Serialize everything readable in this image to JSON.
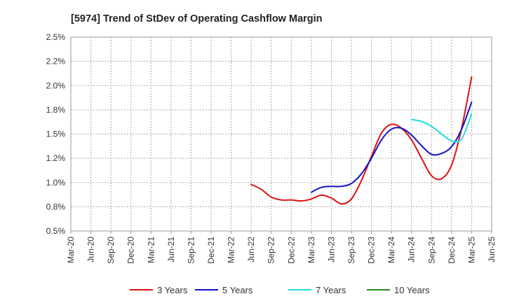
{
  "chart_data": {
    "type": "line",
    "title": "[5974]  Trend of StDev of Operating Cashflow Margin",
    "xlabel": "",
    "ylabel": "",
    "x_ticks": [
      "Mar-20",
      "Jun-20",
      "Sep-20",
      "Dec-20",
      "Mar-21",
      "Jun-21",
      "Sep-21",
      "Dec-21",
      "Mar-22",
      "Jun-22",
      "Sep-22",
      "Dec-22",
      "Mar-23",
      "Jun-23",
      "Sep-23",
      "Dec-23",
      "Mar-24",
      "Jun-24",
      "Sep-24",
      "Dec-24",
      "Mar-25",
      "Jun-25"
    ],
    "y_ticks": [
      "0.5%",
      "0.8%",
      "1.0%",
      "1.2%",
      "1.5%",
      "1.8%",
      "2.0%",
      "2.2%",
      "2.5%"
    ],
    "ylim": [
      0.5,
      2.5
    ],
    "grid": true,
    "legend_position": "bottom",
    "series": [
      {
        "name": "3 Years",
        "color": "#dd1111",
        "points": [
          [
            0,
            0.98
          ],
          [
            1,
            0.93
          ],
          [
            2,
            0.85
          ],
          [
            3,
            0.82
          ],
          [
            4,
            0.82
          ],
          [
            5,
            0.81
          ],
          [
            6,
            0.83
          ],
          [
            7,
            0.87
          ],
          [
            8,
            0.84
          ],
          [
            9,
            0.78
          ],
          [
            10,
            0.83
          ],
          [
            11,
            1.02
          ],
          [
            12,
            1.27
          ],
          [
            13,
            1.51
          ],
          [
            14,
            1.6
          ],
          [
            15,
            1.56
          ],
          [
            16,
            1.44
          ],
          [
            17,
            1.25
          ],
          [
            18,
            1.07
          ],
          [
            19,
            1.04
          ],
          [
            20,
            1.18
          ],
          [
            21,
            1.56
          ],
          [
            22,
            2.09
          ]
        ]
      },
      {
        "name": "5 Years",
        "color": "#1111cc",
        "points": [
          [
            0,
            0.9
          ],
          [
            1,
            0.95
          ],
          [
            2,
            0.96
          ],
          [
            3,
            0.96
          ],
          [
            4,
            0.99
          ],
          [
            5,
            1.09
          ],
          [
            6,
            1.25
          ],
          [
            7,
            1.44
          ],
          [
            8,
            1.55
          ],
          [
            9,
            1.56
          ],
          [
            10,
            1.49
          ],
          [
            11,
            1.38
          ],
          [
            12,
            1.29
          ],
          [
            13,
            1.3
          ],
          [
            14,
            1.37
          ],
          [
            15,
            1.55
          ],
          [
            16,
            1.83
          ]
        ]
      },
      {
        "name": "7 Years",
        "color": "#22dddd",
        "points": [
          [
            0,
            1.65
          ],
          [
            1,
            1.63
          ],
          [
            2,
            1.58
          ],
          [
            3,
            1.5
          ],
          [
            4,
            1.43
          ],
          [
            5,
            1.45
          ],
          [
            6,
            1.71
          ]
        ]
      },
      {
        "name": "10 Years",
        "color": "#228822",
        "points": []
      }
    ]
  }
}
